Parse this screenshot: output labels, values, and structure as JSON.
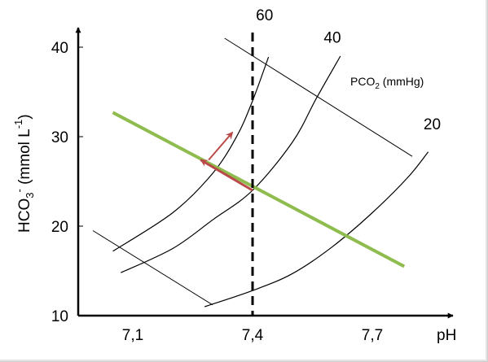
{
  "chart_data": {
    "type": "line",
    "title": "",
    "xlabel": "pH",
    "ylabel": "HCO3- (mmol L-1)",
    "ylabel_parts": {
      "base": "HCO",
      "sub": "3",
      "sup1": "-",
      "mid": " (mmol L",
      "sup2": "-1",
      "end": ")"
    },
    "xlim": [
      7.0,
      7.9
    ],
    "ylim": [
      10,
      42
    ],
    "x_ticks": [
      {
        "value": 7.1,
        "label": "7,1"
      },
      {
        "value": 7.4,
        "label": "7,4"
      },
      {
        "value": 7.7,
        "label": "7,7"
      }
    ],
    "y_ticks": [
      {
        "value": 10,
        "label": "10"
      },
      {
        "value": 20,
        "label": "20"
      },
      {
        "value": 30,
        "label": "30"
      },
      {
        "value": 40,
        "label": "40"
      }
    ],
    "isopleth_legend": {
      "base": "PCO",
      "sub": "2",
      "rest": " (mmHg)"
    },
    "series": [
      {
        "name": "60",
        "label_at": [
          7.43,
          43.0
        ],
        "points": [
          [
            7.05,
            17.2
          ],
          [
            7.2,
            21.5
          ],
          [
            7.3,
            25.9
          ],
          [
            7.36,
            30.0
          ],
          [
            7.4,
            34.0
          ],
          [
            7.44,
            38.9
          ]
        ]
      },
      {
        "name": "40",
        "label_at": [
          7.6,
          40.5
        ],
        "points": [
          [
            7.07,
            14.8
          ],
          [
            7.2,
            17.5
          ],
          [
            7.3,
            20.7
          ],
          [
            7.4,
            24.0
          ],
          [
            7.5,
            29.4
          ],
          [
            7.56,
            34.3
          ],
          [
            7.62,
            39.0
          ]
        ]
      },
      {
        "name": "20",
        "label_at": [
          7.85,
          30.8
        ],
        "points": [
          [
            7.28,
            11.0
          ],
          [
            7.4,
            12.8
          ],
          [
            7.5,
            14.7
          ],
          [
            7.6,
            17.7
          ],
          [
            7.7,
            21.5
          ],
          [
            7.79,
            25.5
          ],
          [
            7.84,
            28.3
          ]
        ]
      }
    ],
    "buffer_lines": [
      {
        "color": "#000000",
        "width": 1,
        "points": [
          [
            7.33,
            41.0
          ],
          [
            7.8,
            27.8
          ]
        ]
      },
      {
        "color": "#000000",
        "width": 1,
        "points": [
          [
            7.0,
            19.5
          ],
          [
            7.3,
            11.2
          ]
        ]
      }
    ],
    "normal_buffer_line": {
      "color": "#8fbc4e",
      "points": [
        [
          7.05,
          32.7
        ],
        [
          7.78,
          15.5
        ]
      ]
    },
    "reference_ph": 7.4,
    "arrows": {
      "color": "#b94a48",
      "horizontal": {
        "from": [
          7.4,
          24.0
        ],
        "to": [
          7.27,
          27.4
        ]
      },
      "up": {
        "from": [
          7.29,
          27.4
        ],
        "to": [
          7.35,
          30.5
        ]
      }
    }
  }
}
